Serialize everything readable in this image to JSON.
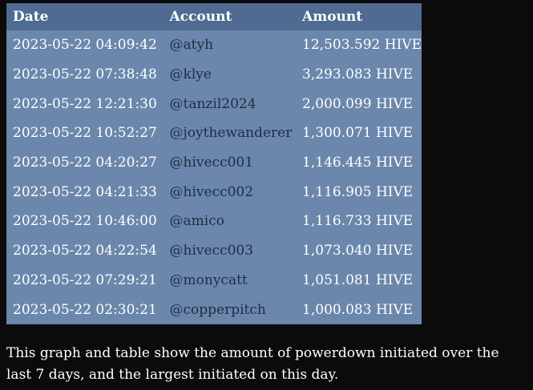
{
  "table": {
    "headers": {
      "date": "Date",
      "account": "Account",
      "amount": "Amount"
    },
    "rows": [
      {
        "date": "2023-05-22 04:09:42",
        "account": "@atyh",
        "amount": "12,503.592 HIVE"
      },
      {
        "date": "2023-05-22 07:38:48",
        "account": "@klye",
        "amount": "3,293.083 HIVE"
      },
      {
        "date": "2023-05-22 12:21:30",
        "account": "@tanzil2024",
        "amount": "2,000.099 HIVE"
      },
      {
        "date": "2023-05-22 10:52:27",
        "account": "@joythewanderer",
        "amount": "1,300.071 HIVE"
      },
      {
        "date": "2023-05-22 04:20:27",
        "account": "@hivecc001",
        "amount": "1,146.445 HIVE"
      },
      {
        "date": "2023-05-22 04:21:33",
        "account": "@hivecc002",
        "amount": "1,116.905 HIVE"
      },
      {
        "date": "2023-05-22 10:46:00",
        "account": "@amico",
        "amount": "1,116.733 HIVE"
      },
      {
        "date": "2023-05-22 04:22:54",
        "account": "@hivecc003",
        "amount": "1,073.040 HIVE"
      },
      {
        "date": "2023-05-22 07:29:21",
        "account": "@monycatt",
        "amount": "1,051.081 HIVE"
      },
      {
        "date": "2023-05-22 02:30:21",
        "account": "@copperpitch",
        "amount": "1,000.083 HIVE"
      }
    ]
  },
  "caption": "This graph and table show the amount of powerdown initiated over the last 7 days, and the largest initiated on this day.",
  "colors": {
    "header_bg": "#4f6b91",
    "row_bg": "#6b87ac",
    "account_text": "#1f2d42",
    "page_bg": "#0b0b0b"
  }
}
